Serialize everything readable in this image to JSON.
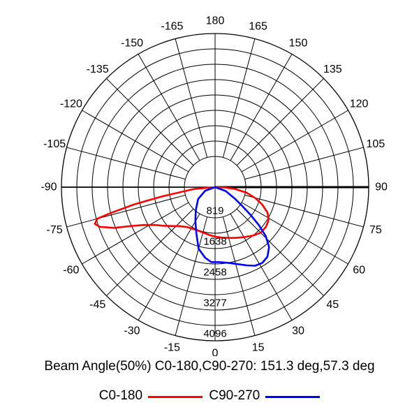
{
  "chart_data": {
    "type": "polar",
    "caption": "Beam Angle(50%) C0-180,C90-270: 151.3 deg,57.3 deg",
    "angle_labels": [
      "180",
      "165",
      "150",
      "135",
      "120",
      "105",
      "90",
      "75",
      "60",
      "45",
      "30",
      "15",
      "0",
      "-15",
      "-30",
      "-45",
      "-60",
      "-75",
      "-90",
      "-105",
      "-120",
      "-135",
      "-150",
      "-165"
    ],
    "angle_values": [
      180,
      165,
      150,
      135,
      120,
      105,
      90,
      75,
      60,
      45,
      30,
      15,
      0,
      -15,
      -30,
      -45,
      -60,
      -75,
      -90,
      -105,
      -120,
      -135,
      -150,
      -165
    ],
    "ring_labels": [
      "819",
      "1638",
      "2458",
      "3277",
      "4096"
    ],
    "rings": [
      819,
      1638,
      2458,
      3277,
      4096
    ],
    "rmax": 4096,
    "grid": true,
    "legend_placement": "bottom",
    "series": [
      {
        "name": "C0-180",
        "color": "#ff0000",
        "points": [
          [
            -90,
            0
          ],
          [
            -85,
            560
          ],
          [
            -80,
            1450
          ],
          [
            -78,
            2200
          ],
          [
            -76,
            2900
          ],
          [
            -75,
            3250
          ],
          [
            -73,
            3350
          ],
          [
            -71,
            3250
          ],
          [
            -68,
            2900
          ],
          [
            -65,
            2450
          ],
          [
            -62,
            2150
          ],
          [
            -58,
            1900
          ],
          [
            -54,
            1750
          ],
          [
            -48,
            1550
          ],
          [
            -42,
            1400
          ],
          [
            -35,
            1300
          ],
          [
            -25,
            1250
          ],
          [
            -15,
            1250
          ],
          [
            -8,
            1280
          ],
          [
            0,
            1320
          ],
          [
            8,
            1360
          ],
          [
            15,
            1400
          ],
          [
            22,
            1460
          ],
          [
            30,
            1540
          ],
          [
            38,
            1640
          ],
          [
            45,
            1720
          ],
          [
            52,
            1720
          ],
          [
            58,
            1680
          ],
          [
            64,
            1560
          ],
          [
            70,
            1330
          ],
          [
            75,
            1100
          ],
          [
            80,
            850
          ],
          [
            85,
            520
          ],
          [
            88,
            250
          ],
          [
            90,
            0
          ]
        ]
      },
      {
        "name": "C90-270",
        "color": "#0000ff",
        "points": [
          [
            -90,
            0
          ],
          [
            -70,
            280
          ],
          [
            -55,
            550
          ],
          [
            -40,
            800
          ],
          [
            -30,
            1050
          ],
          [
            -22,
            1330
          ],
          [
            -15,
            1700
          ],
          [
            -8,
            1900
          ],
          [
            -3,
            2000
          ],
          [
            3,
            2000
          ],
          [
            10,
            2050
          ],
          [
            17,
            2150
          ],
          [
            22,
            2250
          ],
          [
            27,
            2350
          ],
          [
            32,
            2380
          ],
          [
            37,
            2320
          ],
          [
            42,
            2150
          ],
          [
            46,
            1880
          ],
          [
            49,
            1550
          ],
          [
            52,
            1200
          ],
          [
            55,
            900
          ],
          [
            60,
            600
          ],
          [
            70,
            300
          ],
          [
            90,
            0
          ]
        ]
      }
    ]
  },
  "legend": {
    "items": [
      {
        "label": "C0-180",
        "color": "#ff0000"
      },
      {
        "label": "C90-270",
        "color": "#0000ff"
      }
    ]
  }
}
